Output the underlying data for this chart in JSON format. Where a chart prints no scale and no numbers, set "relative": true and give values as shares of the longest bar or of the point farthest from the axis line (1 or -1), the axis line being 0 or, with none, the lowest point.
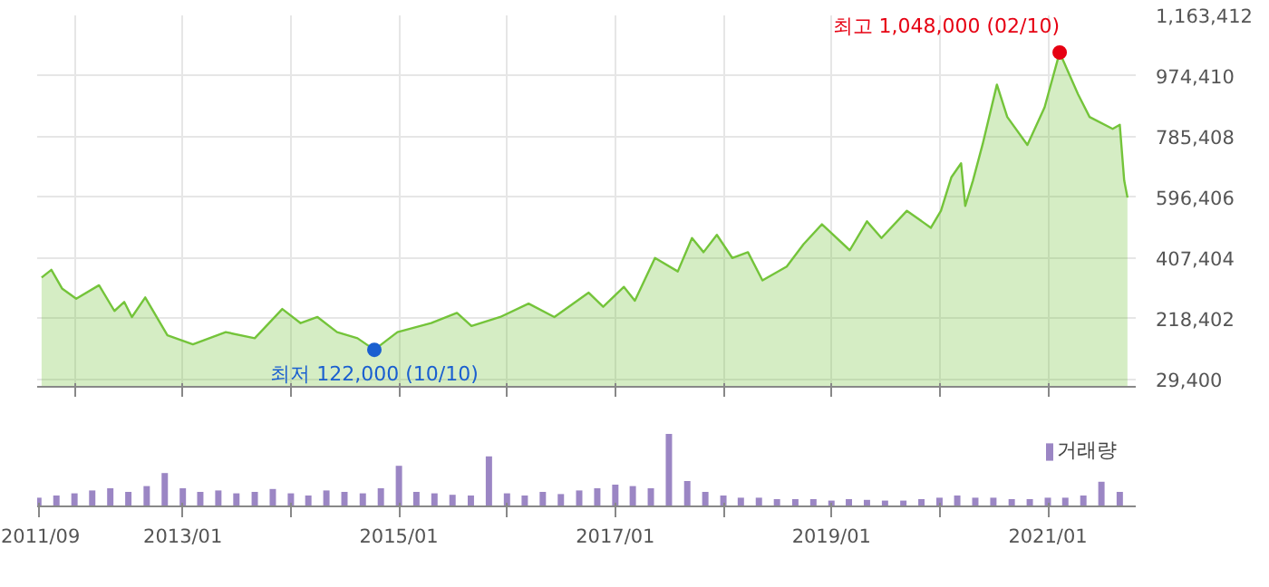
{
  "chart_data": [
    {
      "type": "area",
      "x": [
        "2011-09-12",
        "2011-10-15",
        "2011-11-20",
        "2012-01-07",
        "2012-03-24",
        "2012-05-15",
        "2012-06-17",
        "2012-07-13",
        "2012-08-27",
        "2012-11-10",
        "2013-02-04",
        "2013-05-26",
        "2013-09-01",
        "2013-12-03",
        "2014-02-03",
        "2014-04-01",
        "2014-06-06",
        "2014-08-14",
        "2014-10-10",
        "2014-12-27",
        "2015-04-20",
        "2015-07-16",
        "2015-09-03",
        "2015-12-09",
        "2016-03-14",
        "2016-06-09",
        "2016-10-03",
        "2016-11-21",
        "2017-01-30",
        "2017-03-08",
        "2017-05-15",
        "2017-07-31",
        "2017-09-17",
        "2017-10-26",
        "2017-12-10",
        "2018-01-31",
        "2018-03-25",
        "2018-05-13",
        "2018-08-03",
        "2018-09-29",
        "2018-11-30",
        "2019-03-04",
        "2019-05-01",
        "2019-06-19",
        "2019-09-13",
        "2019-12-03",
        "2020-01-06",
        "2020-02-10",
        "2020-03-14",
        "2020-03-28",
        "2020-04-23",
        "2020-05-26",
        "2020-07-13",
        "2020-08-17",
        "2020-10-24",
        "2020-12-21",
        "2021-02-10",
        "2021-04-13",
        "2021-05-22",
        "2021-08-08",
        "2021-09-01",
        "2021-09-16",
        "2021-09-27"
      ],
      "series": [
        {
          "color": "#74c43a",
          "values": [
            347000,
            371000,
            313000,
            281000,
            323000,
            243000,
            271000,
            224000,
            285000,
            167000,
            139000,
            177000,
            158000,
            249000,
            205000,
            224000,
            177000,
            158000,
            122000,
            177000,
            205000,
            237000,
            196000,
            224000,
            266000,
            224000,
            300000,
            256000,
            318000,
            275000,
            408000,
            366000,
            470000,
            426000,
            480000,
            408000,
            426000,
            338000,
            381000,
            451000,
            513000,
            432000,
            522000,
            470000,
            555000,
            502000,
            555000,
            659000,
            703000,
            570000,
            649000,
            763000,
            948000,
            847000,
            760000,
            877000,
            1048000,
            918000,
            847000,
            810000,
            823000,
            649000,
            596000
          ]
        }
      ],
      "xlim": [
        "2011-08-28",
        "2021-10-25"
      ],
      "xticks": [
        {
          "value": "2012-01",
          "label": null
        },
        {
          "value": "2013-01",
          "label": null
        },
        {
          "value": "2014-01",
          "label": null
        },
        {
          "value": "2015-01",
          "label": null
        },
        {
          "value": "2016-01",
          "label": null
        },
        {
          "value": "2017-01",
          "label": null
        },
        {
          "value": "2018-01",
          "label": null
        },
        {
          "value": "2019-01",
          "label": null
        },
        {
          "value": "2020-01",
          "label": null
        },
        {
          "value": "2021-01",
          "label": null
        }
      ],
      "ylim": [
        6700,
        1163412
      ],
      "yticks": [
        {
          "value": 29400,
          "label": "29,400"
        },
        {
          "value": 218402,
          "label": "218,402"
        },
        {
          "value": 407404,
          "label": "407,404"
        },
        {
          "value": 596406,
          "label": "596,406"
        },
        {
          "value": 785408,
          "label": "785,408"
        },
        {
          "value": 974410,
          "label": "974,410"
        },
        {
          "value": 1163412,
          "label": "1,163,412"
        }
      ],
      "grid": true,
      "tick_labels": "y",
      "annotations": [
        {
          "text": "최고 1,048,000 (02/10)",
          "x": "2021-02-10",
          "y": 1048000
        },
        {
          "text": "최저 122,000 (10/10)",
          "x": "2014-10-10",
          "y": 122000
        }
      ]
    },
    {
      "type": "bar",
      "relative": true,
      "x": [
        "2011-09",
        "2011-11",
        "2012-01",
        "2012-03",
        "2012-05",
        "2012-07",
        "2012-09",
        "2012-11",
        "2013-01",
        "2013-03",
        "2013-05",
        "2013-07",
        "2013-09",
        "2013-11",
        "2014-01",
        "2014-03",
        "2014-05",
        "2014-07",
        "2014-09",
        "2014-11",
        "2015-01",
        "2015-03",
        "2015-05",
        "2015-07",
        "2015-09",
        "2015-11",
        "2016-01",
        "2016-03",
        "2016-05",
        "2016-07",
        "2016-09",
        "2016-11",
        "2017-01",
        "2017-03",
        "2017-05",
        "2017-07",
        "2017-09",
        "2017-11",
        "2018-01",
        "2018-03",
        "2018-05",
        "2018-07",
        "2018-09",
        "2018-11",
        "2019-01",
        "2019-03",
        "2019-05",
        "2019-07",
        "2019-09",
        "2019-11",
        "2020-01",
        "2020-03",
        "2020-05",
        "2020-07",
        "2020-09",
        "2020-11",
        "2021-01",
        "2021-03",
        "2021-05",
        "2021-07",
        "2021-09"
      ],
      "series": [
        {
          "name": "거래량",
          "color": "#9b86c4",
          "values": [
            0.12,
            0.15,
            0.18,
            0.22,
            0.25,
            0.2,
            0.28,
            0.46,
            0.25,
            0.2,
            0.22,
            0.18,
            0.2,
            0.24,
            0.18,
            0.15,
            0.22,
            0.2,
            0.18,
            0.25,
            0.56,
            0.2,
            0.18,
            0.16,
            0.15,
            0.69,
            0.18,
            0.15,
            0.2,
            0.17,
            0.22,
            0.25,
            0.3,
            0.28,
            0.25,
            1.0,
            0.35,
            0.2,
            0.15,
            0.12,
            0.12,
            0.1,
            0.1,
            0.1,
            0.08,
            0.1,
            0.09,
            0.08,
            0.08,
            0.1,
            0.12,
            0.15,
            0.12,
            0.12,
            0.1,
            0.1,
            0.12,
            0.12,
            0.15,
            0.34,
            0.2
          ]
        }
      ],
      "xlim": [
        "2011-08-28",
        "2021-10-25"
      ],
      "xticks": [
        {
          "value": "2011-09",
          "label": "2011/09"
        },
        {
          "value": "2013-01",
          "label": "2013/01"
        },
        {
          "value": "2014-01",
          "label": null
        },
        {
          "value": "2015-01",
          "label": "2015/01"
        },
        {
          "value": "2016-01",
          "label": null
        },
        {
          "value": "2017-01",
          "label": "2017/01"
        },
        {
          "value": "2018-01",
          "label": null
        },
        {
          "value": "2019-01",
          "label": "2019/01"
        },
        {
          "value": "2020-01",
          "label": null
        },
        {
          "value": "2021-01",
          "label": "2021/01"
        }
      ],
      "tick_labels": "x",
      "legend": "top right"
    }
  ]
}
